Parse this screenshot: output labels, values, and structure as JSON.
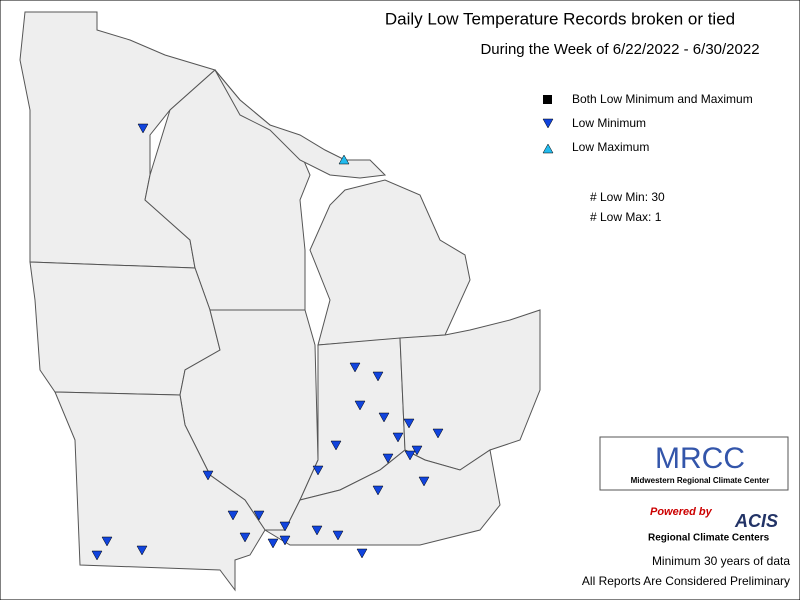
{
  "header": {
    "title": "Daily Low Temperature Records broken or tied",
    "subtitle": "During the Week of 6/22/2022 - 6/30/2022"
  },
  "legend": [
    "Both Low Minimum and Maximum",
    "Low Minimum",
    "Low Maximum"
  ],
  "counts": [
    "# Low Min: 30",
    "# Low Max: 1"
  ],
  "logo": {
    "name": "MRCC",
    "full_name": "Midwestern Regional Climate Center"
  },
  "acis": {
    "powered": "Powered by",
    "name": "ACIS",
    "sub": "Regional Climate Centers"
  },
  "notes": [
    "Minimum 30 years of data",
    "All Reports Are Considered Preliminary"
  ]
}
